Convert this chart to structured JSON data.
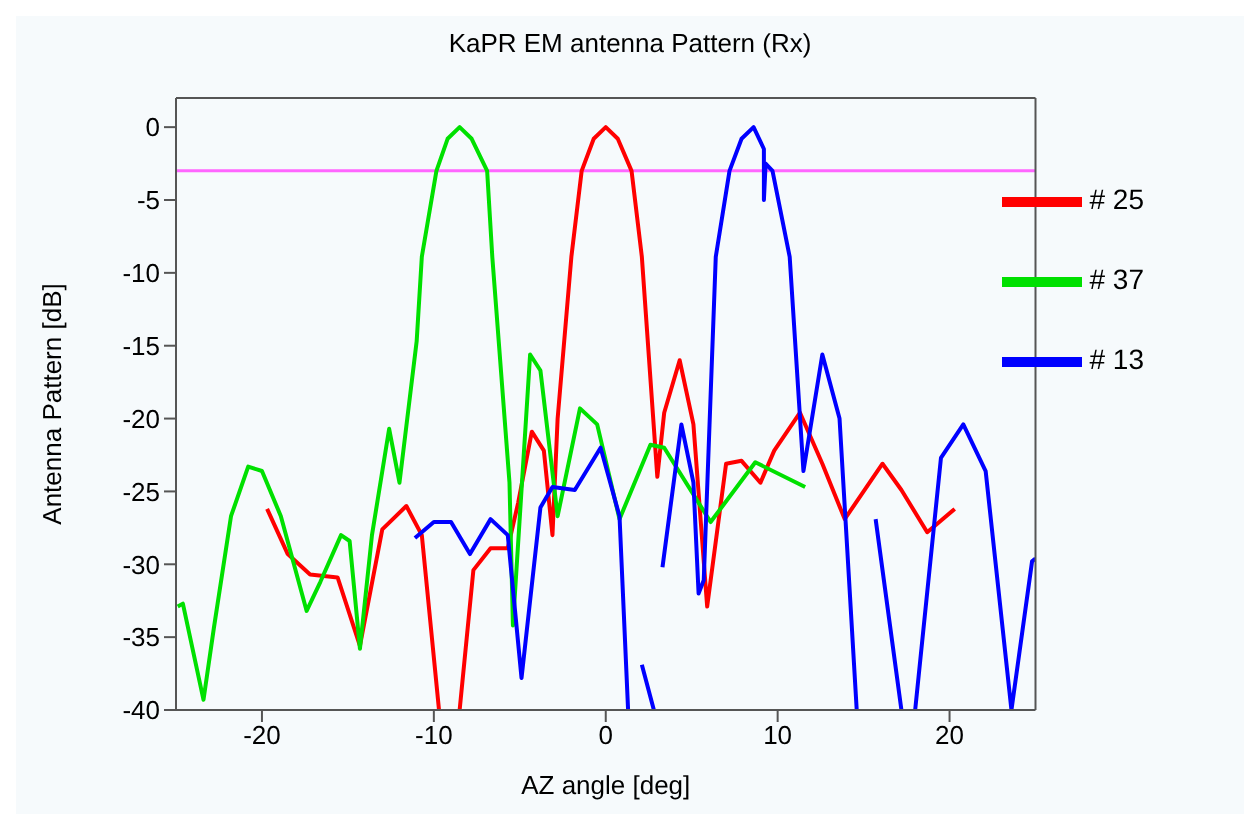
{
  "chart_data": {
    "type": "line",
    "title": "KaPR EM antenna Pattern (Rx)",
    "xlabel": "AZ angle [deg]",
    "ylabel": "Antenna Pattern [dB]",
    "xlim": [
      -25,
      25
    ],
    "xticks": [
      -20,
      -10,
      0,
      10,
      20
    ],
    "ylim": [
      -40,
      2
    ],
    "yticks": [
      -40,
      -35,
      -30,
      -25,
      -20,
      -15,
      -10,
      -5,
      0
    ],
    "grid": false,
    "legend": "top right",
    "marker": "none",
    "line_style": "solid",
    "ref_lines": [
      {
        "axis": "y",
        "value": -3,
        "color": "#ff66ff"
      }
    ],
    "series": [
      {
        "name": "# 25",
        "color": "#ff0000",
        "x": [
          -19.7,
          -18.5,
          -17.2,
          -15.6,
          -14.3,
          -13,
          -11.6,
          -10.7,
          -9.7,
          -9.1,
          -8.5,
          -7.7,
          -6.7,
          -5.7,
          -5.1,
          -4.3,
          -3.6,
          -3.1,
          -2.8,
          -2,
          -1.4,
          -0.7,
          0,
          0.7,
          1.5,
          2.1,
          3.0,
          3.4,
          4.3,
          5.1,
          5.9,
          7.0,
          7.9,
          9.0,
          9.8,
          11.3,
          12.6,
          13.9,
          16.1,
          17.2,
          18.7,
          20.3
        ],
        "values": [
          -26.2,
          -29.3,
          -30.7,
          -30.9,
          -35.6,
          -27.6,
          -26,
          -28,
          -40,
          null,
          -40,
          -30.4,
          -28.9,
          -28.9,
          -25.8,
          -20.9,
          -22.2,
          -28,
          -20,
          -8.9,
          -3,
          -0.8,
          0,
          -0.8,
          -3,
          -8.9,
          -24,
          -19.6,
          -16,
          -20.4,
          -32.9,
          -23.1,
          -22.9,
          -24.4,
          -22.2,
          -19.6,
          -23.1,
          -26.9,
          -23.1,
          -24.9,
          -27.8,
          -26.2
        ]
      },
      {
        "name": "# 37",
        "color": "#00e000",
        "x": [
          -24.9,
          -24.6,
          -23.4,
          -22.8,
          -21.8,
          -20.8,
          -20,
          -18.9,
          -17.4,
          -16.6,
          -15.4,
          -14.9,
          -14.3,
          -13.6,
          -12.6,
          -12,
          -11,
          -10.7,
          -9.85,
          -9.2,
          -8.5,
          -7.8,
          -6.9,
          -6.6,
          -5.6,
          -5.4,
          -4.4,
          -3.8,
          -2.8,
          -1.5,
          -0.5,
          0.8,
          2.6,
          3.4,
          6.1,
          8.7,
          11.6
        ],
        "values": [
          -32.9,
          -32.7,
          -39.3,
          -34.4,
          -26.7,
          -23.3,
          -23.6,
          -26.7,
          -33.2,
          -31.2,
          -28,
          -28.4,
          -35.8,
          -28,
          -20.7,
          -24.4,
          -14.7,
          -8.9,
          -3,
          -0.8,
          0,
          -0.8,
          -3,
          -8.9,
          -24.4,
          -34.2,
          -15.6,
          -16.7,
          -26.7,
          -19.3,
          -20.4,
          -26.9,
          -21.8,
          -22,
          -27.1,
          -23,
          -24.7
        ]
      },
      {
        "name": "# 13",
        "color": "#0000ff",
        "x": [
          -11.1,
          -10,
          -9,
          -7.9,
          -6.7,
          -5.7,
          -4.9,
          -3.8,
          -3.1,
          -1.8,
          -0.3,
          0.8,
          1.3,
          1.7,
          2.1,
          2.8,
          3.0,
          3.3,
          4.4,
          5.1,
          5.4,
          5.7,
          6.4,
          7.2,
          7.9,
          8.6,
          9.2,
          9.2,
          9.3,
          9.7,
          10.7,
          11.5,
          12.6,
          13.6,
          14.6,
          15.1,
          15.7,
          17.2,
          17.6,
          18.0,
          19.5,
          20.8,
          22.1,
          23.6,
          24.8,
          25
        ],
        "values": [
          -28.2,
          -27.1,
          -27.1,
          -29.3,
          -26.9,
          -28,
          -37.8,
          -26.1,
          -24.7,
          -24.9,
          -22,
          -26.7,
          -40,
          null,
          -36.9,
          -40,
          null,
          -30.2,
          -20.4,
          -24.4,
          -32,
          -31.1,
          -8.9,
          -3,
          -0.8,
          0,
          -1.5,
          -5,
          -2.5,
          -3,
          -8.9,
          -23.6,
          -15.6,
          -20,
          -40,
          null,
          -26.9,
          -40,
          null,
          -40,
          -22.7,
          -20.4,
          -23.6,
          -40,
          -29.8,
          -29.6
        ]
      }
    ]
  }
}
